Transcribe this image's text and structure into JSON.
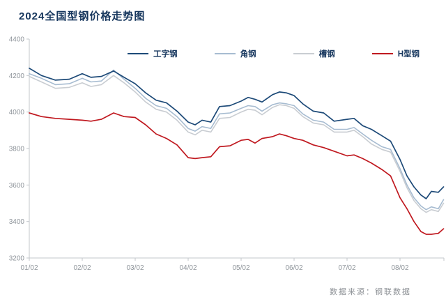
{
  "page": {
    "title": "2024全国型钢价格走势图",
    "source_note": "数据来源：钢联数据"
  },
  "chart_data": {
    "type": "line",
    "title": "2024全国型钢价格走势图",
    "xlabel": "",
    "ylabel": "",
    "ylim": [
      3200,
      4400
    ],
    "y_ticks": [
      4400,
      4200,
      4000,
      3800,
      3600,
      3400,
      3200
    ],
    "x_ticks": [
      "01/02",
      "02/02",
      "03/02",
      "04/02",
      "05/02",
      "06/02",
      "07/02",
      "08/02"
    ],
    "grid": false,
    "legend_position": "top-inside",
    "axis_color": "#c3c7cb",
    "tick_text_color": "#8f959b",
    "x": [
      "01/02",
      "01/09",
      "01/17",
      "01/25",
      "02/02",
      "02/07",
      "02/13",
      "02/20",
      "02/26",
      "03/02",
      "03/08",
      "03/14",
      "03/20",
      "03/26",
      "04/02",
      "04/06",
      "04/10",
      "04/15",
      "04/20",
      "04/26",
      "05/02",
      "05/06",
      "05/10",
      "05/14",
      "05/20",
      "05/24",
      "05/28",
      "06/02",
      "06/07",
      "06/13",
      "06/19",
      "06/25",
      "07/02",
      "07/06",
      "07/11",
      "07/16",
      "07/22",
      "07/27",
      "08/02",
      "08/06",
      "08/10",
      "08/14",
      "08/17",
      "08/20",
      "08/24",
      "08/27"
    ],
    "series": [
      {
        "key": "i-beam",
        "name": "工字钢",
        "color": "#1d4a78",
        "width": 1.7,
        "values": [
          4240,
          4200,
          4175,
          4180,
          4210,
          4190,
          4195,
          4225,
          4190,
          4155,
          4105,
          4065,
          4050,
          4005,
          3945,
          3930,
          3955,
          3945,
          4030,
          4035,
          4060,
          4080,
          4070,
          4055,
          4095,
          4110,
          4105,
          4090,
          4045,
          4005,
          3995,
          3950,
          3960,
          3965,
          3925,
          3905,
          3870,
          3840,
          3740,
          3650,
          3590,
          3545,
          3525,
          3565,
          3560,
          3590
        ]
      },
      {
        "key": "angle-steel",
        "name": "角钢",
        "color": "#a7bcd1",
        "width": 1.6,
        "values": [
          4210,
          4185,
          4150,
          4155,
          4185,
          4165,
          4170,
          4230,
          4180,
          4130,
          4075,
          4035,
          4020,
          3975,
          3910,
          3895,
          3920,
          3910,
          3990,
          3995,
          4020,
          4035,
          4030,
          4005,
          4040,
          4050,
          4045,
          4035,
          3990,
          3955,
          3945,
          3905,
          3905,
          3915,
          3880,
          3845,
          3810,
          3795,
          3690,
          3600,
          3530,
          3485,
          3465,
          3480,
          3470,
          3520
        ]
      },
      {
        "key": "channel-steel",
        "name": "槽钢",
        "color": "#c9cdd2",
        "width": 1.6,
        "values": [
          4195,
          4165,
          4130,
          4135,
          4160,
          4140,
          4150,
          4200,
          4160,
          4110,
          4055,
          4015,
          4000,
          3955,
          3890,
          3875,
          3900,
          3890,
          3965,
          3970,
          4000,
          4015,
          4010,
          3985,
          4025,
          4040,
          4035,
          4020,
          3975,
          3940,
          3930,
          3890,
          3890,
          3900,
          3865,
          3825,
          3795,
          3780,
          3675,
          3585,
          3515,
          3470,
          3450,
          3465,
          3455,
          3500
        ]
      },
      {
        "key": "h-beam",
        "name": "H型钢",
        "color": "#c01920",
        "width": 1.7,
        "values": [
          3995,
          3975,
          3965,
          3960,
          3955,
          3950,
          3960,
          3995,
          3975,
          3970,
          3930,
          3880,
          3855,
          3820,
          3750,
          3745,
          3750,
          3755,
          3810,
          3815,
          3845,
          3850,
          3830,
          3855,
          3865,
          3880,
          3870,
          3855,
          3845,
          3820,
          3805,
          3785,
          3760,
          3765,
          3745,
          3720,
          3685,
          3650,
          3530,
          3470,
          3400,
          3345,
          3330,
          3330,
          3335,
          3360
        ]
      }
    ]
  }
}
